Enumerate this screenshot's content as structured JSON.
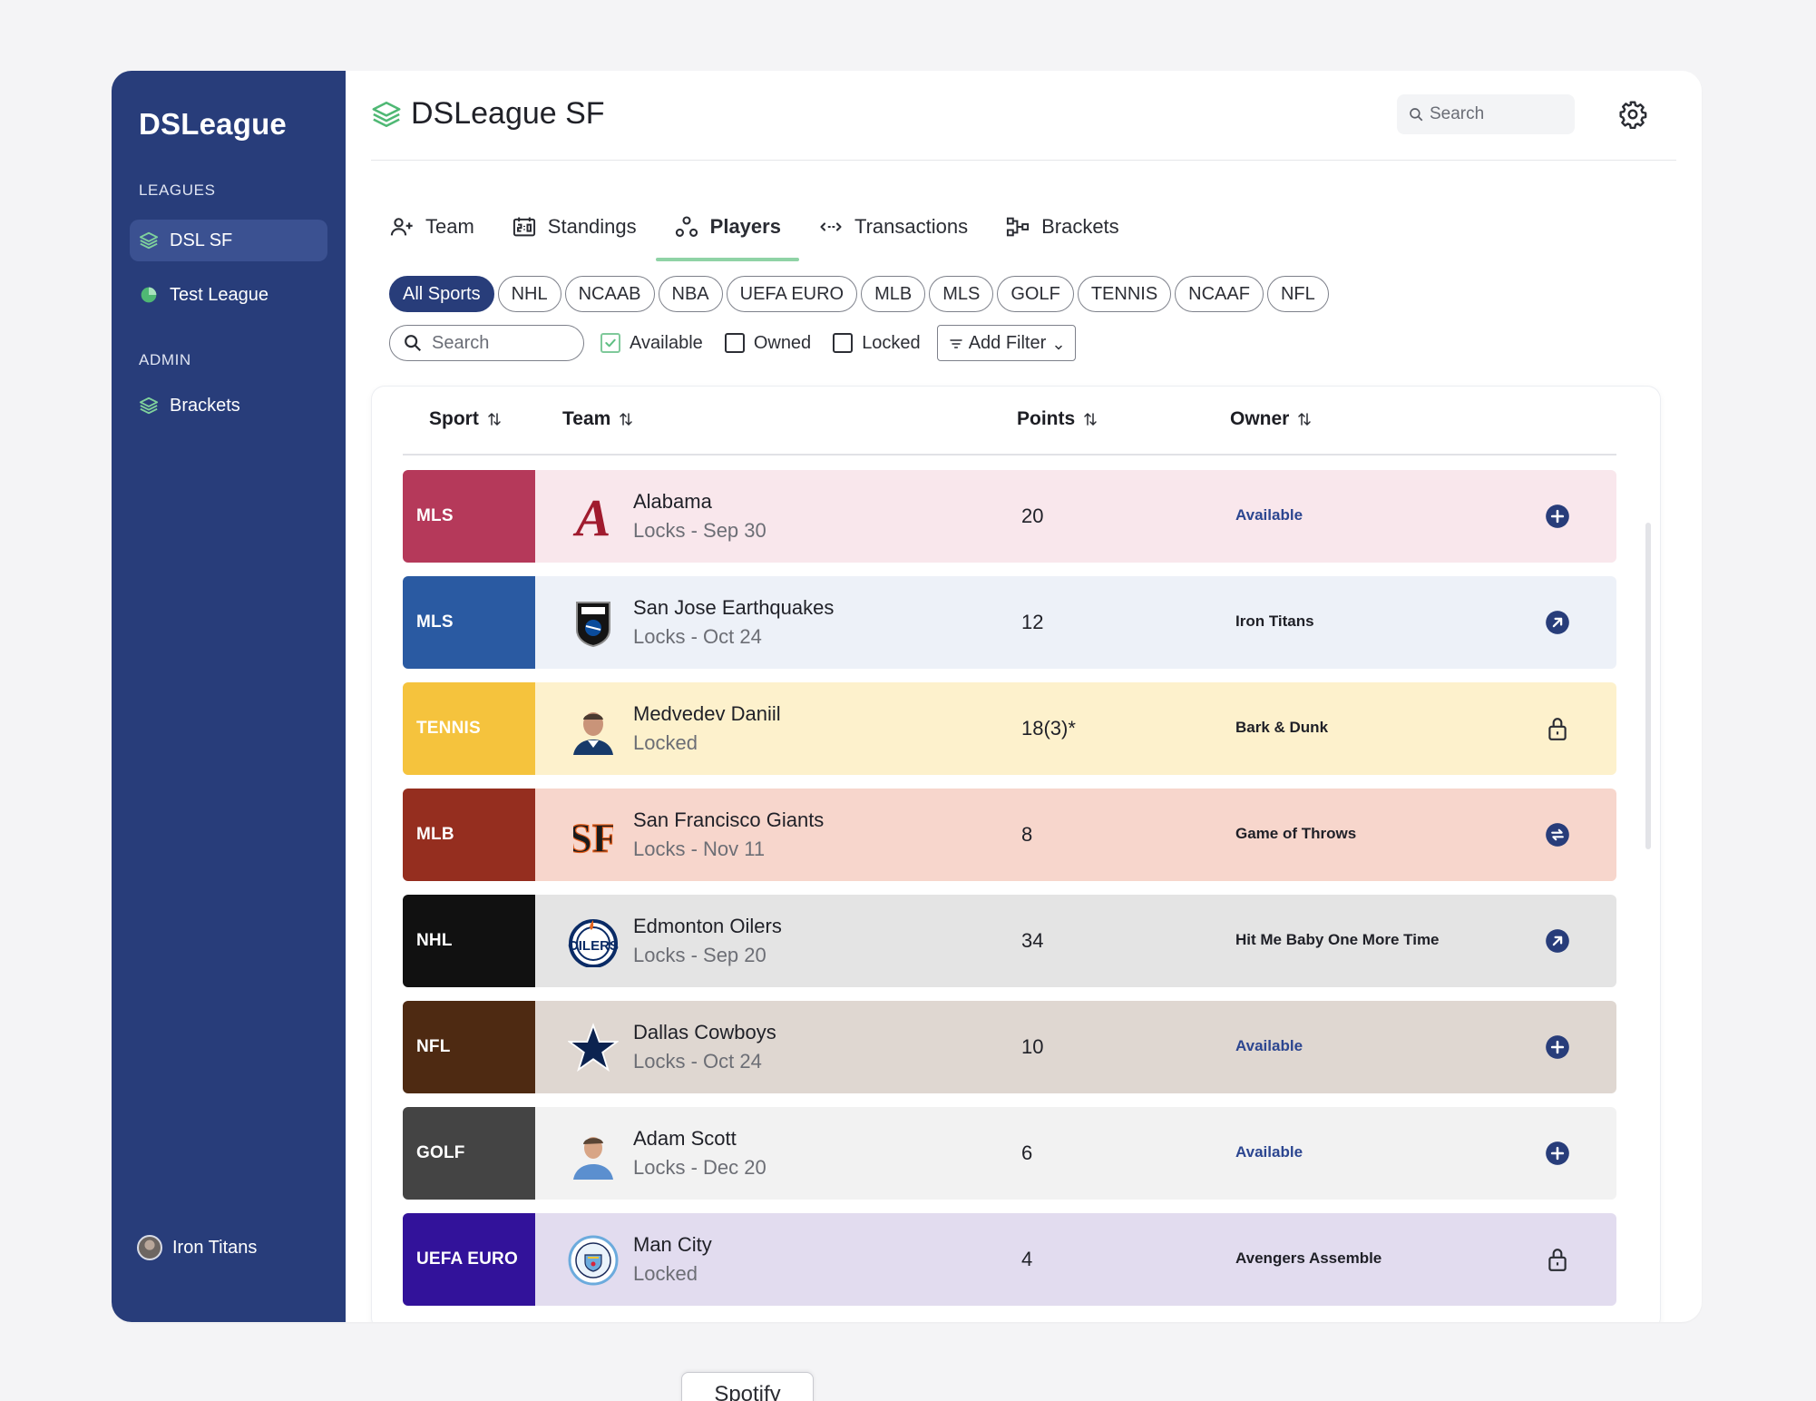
{
  "sidebar": {
    "brand": "DSLeague",
    "leagues_label": "LEAGUES",
    "leagues": [
      {
        "label": "DSL SF",
        "active": true
      },
      {
        "label": "Test League",
        "active": false
      }
    ],
    "admin_label": "ADMIN",
    "admin_items": [
      {
        "label": "Brackets"
      }
    ],
    "user": "Iron Titans"
  },
  "header": {
    "title": "DSLeague SF",
    "search_placeholder": "Search"
  },
  "tabs": [
    {
      "label": "Team",
      "icon": "user-add-icon"
    },
    {
      "label": "Standings",
      "icon": "scoreboard-icon"
    },
    {
      "label": "Players",
      "icon": "players-icon",
      "active": true
    },
    {
      "label": "Transactions",
      "icon": "arrows-icon"
    },
    {
      "label": "Brackets",
      "icon": "bracket-icon"
    }
  ],
  "sport_filters": [
    "All Sports",
    "NHL",
    "NCAAB",
    "NBA",
    "UEFA EURO",
    "MLB",
    "MLS",
    "GOLF",
    "TENNIS",
    "NCAAF",
    "NFL"
  ],
  "filters": {
    "search_placeholder": "Search",
    "available": {
      "label": "Available",
      "checked": true
    },
    "owned": {
      "label": "Owned",
      "checked": false
    },
    "locked": {
      "label": "Locked",
      "checked": false
    },
    "add_filter": "Add Filter"
  },
  "table": {
    "headers": {
      "sport": "Sport",
      "team": "Team",
      "points": "Points",
      "owner": "Owner"
    },
    "rows": [
      {
        "sport": "MLS",
        "sport_color": "#b5395a",
        "row_bg": "#f9e7ec",
        "team": "Alabama",
        "sub": "Locks - Sep 30",
        "points": "20",
        "owner": "Available",
        "available": true,
        "action": "plus-circle-icon",
        "logo": "alabama-logo"
      },
      {
        "sport": "MLS",
        "sport_color": "#2a5aa2",
        "row_bg": "#edf1f8",
        "team": "San Jose Earthquakes",
        "sub": "Locks - Oct 24",
        "points": "12",
        "owner": "Iron Titans",
        "available": false,
        "action": "arrow-up-right-circle-icon",
        "logo": "earthquakes-logo"
      },
      {
        "sport": "TENNIS",
        "sport_color": "#f5c33d",
        "row_bg": "#fdf1cc",
        "team": "Medvedev Daniil",
        "sub": "Locked",
        "points": "18(3)*",
        "owner": "Bark & Dunk",
        "available": false,
        "action": "lock-icon",
        "logo": "player-photo"
      },
      {
        "sport": "MLB",
        "sport_color": "#952e1f",
        "row_bg": "#f7d6cc",
        "team": "San Francisco Giants",
        "sub": "Locks - Nov 11",
        "points": "8",
        "owner": "Game of Throws",
        "available": false,
        "action": "swap-circle-icon",
        "logo": "giants-logo"
      },
      {
        "sport": "NHL",
        "sport_color": "#111111",
        "row_bg": "#e4e4e4",
        "team": "Edmonton Oilers",
        "sub": "Locks - Sep 20",
        "points": "34",
        "owner": "Hit Me Baby One More Time",
        "available": false,
        "action": "arrow-up-right-circle-icon",
        "logo": "oilers-logo"
      },
      {
        "sport": "NFL",
        "sport_color": "#4e2a12",
        "row_bg": "#dfd7d1",
        "team": "Dallas Cowboys",
        "sub": "Locks - Oct 24",
        "points": "10",
        "owner": "Available",
        "available": true,
        "action": "plus-circle-icon",
        "logo": "cowboys-star-logo"
      },
      {
        "sport": "GOLF",
        "sport_color": "#444444",
        "row_bg": "#f2f2f2",
        "team": "Adam Scott",
        "sub": "Locks - Dec 20",
        "points": "6",
        "owner": "Available",
        "available": true,
        "action": "plus-circle-icon",
        "logo": "player-photo"
      },
      {
        "sport": "UEFA EURO",
        "sport_color": "#32129a",
        "row_bg": "#e2dcef",
        "team": "Man City",
        "sub": "Locked",
        "points": "4",
        "owner": "Avengers Assemble",
        "available": false,
        "action": "lock-icon",
        "logo": "mancity-logo"
      }
    ]
  },
  "taskbar": {
    "item": "Spotify"
  },
  "colors": {
    "navy": "#283d7a",
    "accent_green": "#8fd3a6",
    "available_blue": "#2c4690"
  }
}
